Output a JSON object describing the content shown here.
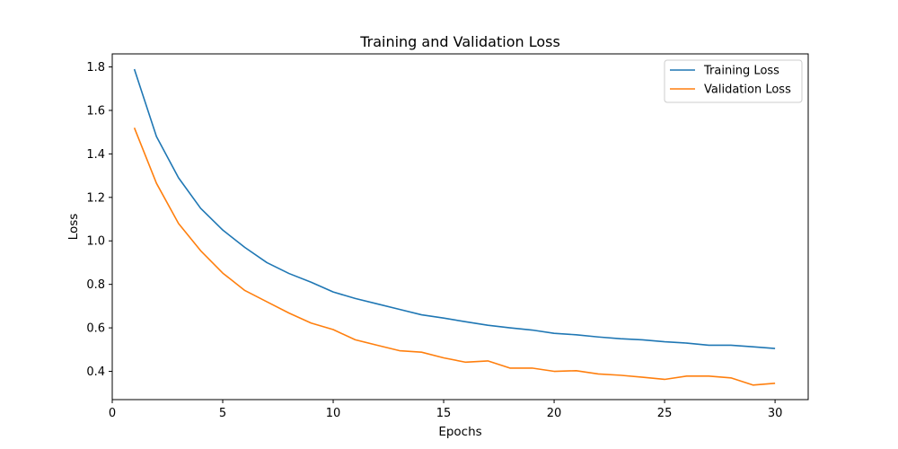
{
  "chart_data": {
    "type": "line",
    "title": "Training and Validation Loss",
    "xlabel": "Epochs",
    "ylabel": "Loss",
    "xlim": [
      0,
      31.5
    ],
    "ylim": [
      0.27,
      1.86
    ],
    "xticks": [
      0,
      5,
      10,
      15,
      20,
      25,
      30
    ],
    "yticks": [
      0.4,
      0.6,
      0.8,
      1.0,
      1.2,
      1.4,
      1.6,
      1.8
    ],
    "grid": false,
    "legend_position": "top-right",
    "x": [
      1,
      2,
      3,
      4,
      5,
      6,
      7,
      8,
      9,
      10,
      11,
      12,
      13,
      14,
      15,
      16,
      17,
      18,
      19,
      20,
      21,
      22,
      23,
      24,
      25,
      26,
      27,
      28,
      29,
      30
    ],
    "series": [
      {
        "name": "Training Loss",
        "color": "#1f77b4",
        "values": [
          1.79,
          1.48,
          1.29,
          1.15,
          1.05,
          0.97,
          0.9,
          0.85,
          0.81,
          0.765,
          0.735,
          0.71,
          0.685,
          0.66,
          0.645,
          0.628,
          0.612,
          0.6,
          0.59,
          0.575,
          0.568,
          0.558,
          0.55,
          0.545,
          0.536,
          0.53,
          0.52,
          0.52,
          0.513,
          0.505
        ]
      },
      {
        "name": "Validation Loss",
        "color": "#ff7f0e",
        "values": [
          1.52,
          1.265,
          1.08,
          0.955,
          0.852,
          0.772,
          0.72,
          0.668,
          0.622,
          0.592,
          0.545,
          0.52,
          0.495,
          0.488,
          0.462,
          0.442,
          0.448,
          0.415,
          0.415,
          0.4,
          0.403,
          0.388,
          0.382,
          0.373,
          0.363,
          0.378,
          0.378,
          0.37,
          0.337,
          0.345
        ]
      }
    ]
  }
}
